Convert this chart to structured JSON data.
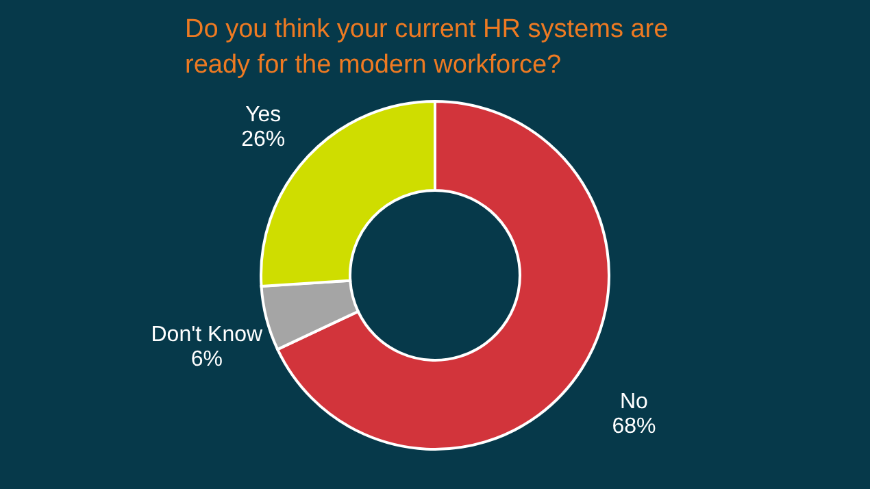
{
  "chart_data": {
    "type": "donut",
    "title": [
      "Do you think your current HR systems are",
      "ready for the modern workforce?"
    ],
    "categories": [
      "No",
      "Don't Know",
      "Yes"
    ],
    "values": [
      68,
      6,
      26
    ],
    "value_labels": [
      "68%",
      "6%",
      "26%"
    ],
    "colors": [
      "#d2343b",
      "#a5a5a5",
      "#cfdd00"
    ],
    "legend": false
  }
}
